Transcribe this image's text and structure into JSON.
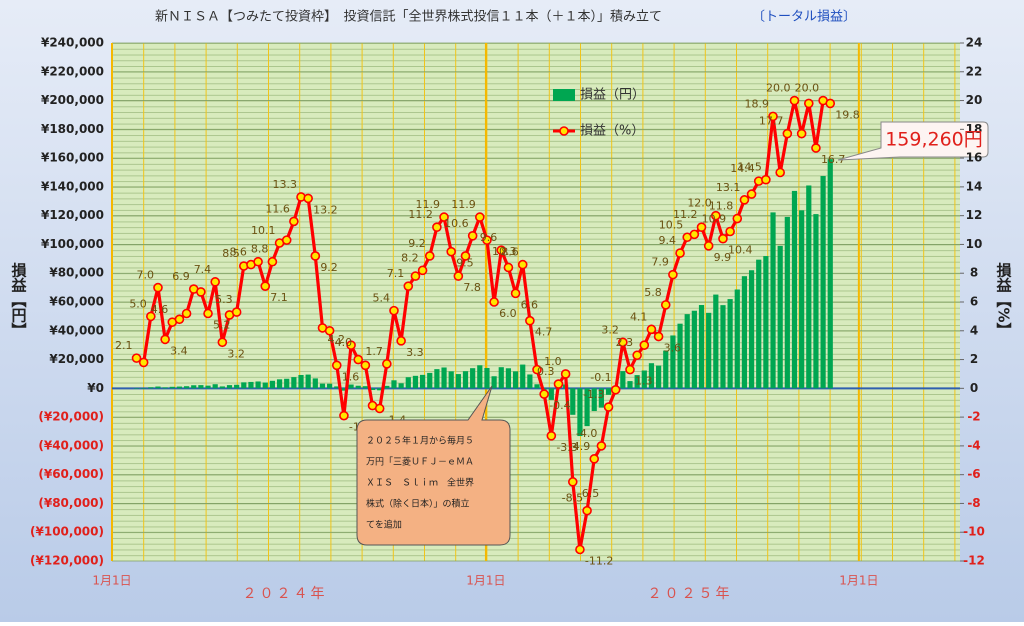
{
  "chart_data": {
    "type": "bar-line",
    "title": "新ＮＩＳＡ【つみたて投資枠】　投資信託「全世界株式投信１１本（＋１本）」積み立て",
    "title_suffix": "〔トータル損益〕",
    "y_label": "損益【円】",
    "y2_label": "損益【%】",
    "x_groups": [
      "２０２４年",
      "２０２５年"
    ],
    "annotation": [
      "２０２５年１月から毎月５",
      "万円「三菱ＵＦＪ－ｅＭＡ",
      "ＸＩＳ　Ｓｌｉｍ　全世界",
      "株式（除く日本）」の積立",
      "てを追加"
    ],
    "xlim": [
      0,
      830
    ],
    "xticks": [
      {
        "value": 0,
        "label": "1月1日"
      },
      {
        "value": 366,
        "label": "1月1日"
      },
      {
        "value": 731,
        "label": "1月1日"
      }
    ],
    "ylim": [
      -120000,
      240000
    ],
    "yticks": [
      {
        "value": 240000,
        "label": "¥240,000"
      },
      {
        "value": 220000,
        "label": "¥220,000"
      },
      {
        "value": 200000,
        "label": "¥200,000"
      },
      {
        "value": 180000,
        "label": "¥180,000"
      },
      {
        "value": 160000,
        "label": "¥160,000"
      },
      {
        "value": 140000,
        "label": "¥140,000"
      },
      {
        "value": 120000,
        "label": "¥120,000"
      },
      {
        "value": 100000,
        "label": "¥100,000"
      },
      {
        "value": 80000,
        "label": "¥80,000"
      },
      {
        "value": 60000,
        "label": "¥60,000"
      },
      {
        "value": 40000,
        "label": "¥40,000"
      },
      {
        "value": 20000,
        "label": "¥20,000"
      },
      {
        "value": 0,
        "label": "¥0"
      },
      {
        "value": -20000,
        "label": "(¥20,000)"
      },
      {
        "value": -40000,
        "label": "(¥40,000)"
      },
      {
        "value": -60000,
        "label": "(¥60,000)"
      },
      {
        "value": -80000,
        "label": "(¥80,000)"
      },
      {
        "value": -100000,
        "label": "(¥100,000)"
      },
      {
        "value": -120000,
        "label": "(¥120,000)"
      }
    ],
    "y2lim": [
      -12,
      24
    ],
    "y2ticks": [
      24,
      22,
      20,
      18,
      16,
      14,
      12,
      10,
      8,
      6,
      4,
      2,
      0,
      -2,
      -4,
      -6,
      -8,
      -10,
      -12
    ],
    "x": [
      24,
      31,
      38,
      45,
      52,
      59,
      66,
      73,
      80,
      87,
      94,
      101,
      108,
      115,
      122,
      129,
      136,
      143,
      150,
      157,
      164,
      171,
      178,
      185,
      192,
      199,
      206,
      213,
      220,
      227,
      234,
      241,
      248,
      255,
      262,
      269,
      276,
      283,
      290,
      297,
      304,
      311,
      318,
      325,
      332,
      339,
      346,
      353,
      360,
      367,
      374,
      381,
      388,
      395,
      402,
      409,
      416,
      423,
      430,
      437,
      444,
      451,
      458,
      465,
      472,
      479,
      486,
      493,
      500,
      507,
      514,
      521,
      528,
      535,
      542,
      549,
      556,
      563,
      570,
      577,
      584,
      591,
      598,
      605,
      612,
      619,
      626,
      633,
      640,
      647,
      654,
      661,
      668,
      675,
      682,
      689,
      696,
      703
    ],
    "series": [
      {
        "name": "損益（円）",
        "color": "#00a651",
        "values": [
          210,
          230,
          760,
          1250,
          690,
          1060,
          1230,
          1470,
          2130,
          2240,
          1870,
          2860,
          1320,
          2230,
          2460,
          4170,
          4440,
          4770,
          4030,
          5230,
          6260,
          6650,
          7800,
          9280,
          9560,
          6900,
          3260,
          3210,
          1320,
          -1620,
          2640,
          1810,
          1490,
          -1150,
          -1380,
          1720,
          5590,
          3500,
          7720,
          8690,
          9350,
          10730,
          13350,
          14490,
          11820,
          9910,
          11920,
          14010,
          16040,
          14150,
          8400,
          14690,
          13940,
          11810,
          16510,
          9640,
          2830,
          -920,
          -8050,
          770,
          2700,
          -18400,
          -33150,
          -26270,
          -15780,
          -13400,
          -4520,
          -360,
          11970,
          5030,
          9200,
          12390,
          17470,
          15800,
          26220,
          36740,
          44930,
          51560,
          53930,
          57900,
          52470,
          65160,
          57820,
          62020,
          68680,
          77950,
          82080,
          89420,
          91930,
          122280,
          99000,
          119120,
          137200,
          123720,
          140980,
          121080,
          147600,
          159260
        ],
        "value_labels": [
          null,
          null,
          null,
          null,
          null,
          null,
          null,
          null,
          null,
          null,
          null,
          null,
          null,
          null,
          null,
          null,
          null,
          null,
          null,
          null,
          null,
          null,
          null,
          null,
          null,
          null,
          null,
          null,
          null,
          null,
          null,
          null,
          null,
          null,
          null,
          null,
          null,
          null,
          null,
          null,
          null,
          null,
          null,
          null,
          null,
          null,
          null,
          null,
          null,
          null,
          null,
          null,
          null,
          null,
          null,
          null,
          null,
          null,
          null,
          null,
          null,
          null,
          null,
          null,
          null,
          null,
          null,
          null,
          null,
          null,
          null,
          null,
          null,
          null,
          null,
          null,
          null,
          null,
          null,
          null,
          null,
          null,
          null,
          null,
          null,
          null,
          null,
          null,
          null,
          null,
          null,
          null,
          null,
          null,
          null,
          null,
          null,
          "159,260円"
        ]
      },
      {
        "name": "損益（%）",
        "color": "#ff0000",
        "axis": "y2",
        "values": [
          2.1,
          1.8,
          5.0,
          7.0,
          3.4,
          4.6,
          4.8,
          5.2,
          6.9,
          6.7,
          5.2,
          7.4,
          3.2,
          5.1,
          5.3,
          8.5,
          8.6,
          8.8,
          7.1,
          8.8,
          10.1,
          10.3,
          11.6,
          13.3,
          13.2,
          9.2,
          4.2,
          4.0,
          1.6,
          -1.9,
          3.0,
          2.0,
          1.6,
          -1.2,
          -1.4,
          1.7,
          5.4,
          3.3,
          7.1,
          7.8,
          8.2,
          9.2,
          11.2,
          11.9,
          9.5,
          7.8,
          9.2,
          10.6,
          11.9,
          10.3,
          6.0,
          9.6,
          8.4,
          6.6,
          8.6,
          4.7,
          1.3,
          -0.4,
          -3.3,
          0.3,
          1.0,
          -6.5,
          -11.2,
          -8.5,
          -4.9,
          -4.0,
          -1.3,
          -0.1,
          3.2,
          1.3,
          2.3,
          3.0,
          4.1,
          3.6,
          5.8,
          7.9,
          9.4,
          10.5,
          10.7,
          11.2,
          9.9,
          12.0,
          10.4,
          10.9,
          11.8,
          13.1,
          13.5,
          14.4,
          14.5,
          18.9,
          15.0,
          17.7,
          20.0,
          17.7,
          19.8,
          16.7,
          20.0,
          19.8
        ],
        "value_labels": [
          "2.1",
          null,
          "5.0",
          "7.0",
          "3.4",
          "4.6",
          null,
          null,
          "6.9",
          null,
          "5.2",
          "7.4",
          "3.2",
          null,
          "5.3",
          "8.5",
          "8.6",
          null,
          "7.1",
          "8.8",
          "10.1",
          null,
          "11.6",
          "13.3",
          "13.2",
          "9.2",
          "4.2",
          "4.0",
          "1.6",
          "-1.9",
          null,
          null,
          null,
          null,
          "-1.4",
          "1.7",
          "5.4",
          "3.3",
          "7.1",
          null,
          "8.2",
          "9.2",
          "11.2",
          "11.9",
          "9.5",
          "7.8",
          null,
          "10.6",
          "11.9",
          "10.3",
          "6.0",
          "9.6",
          null,
          "6.6",
          "8.6",
          "4.7",
          null,
          "-0.4",
          "-3.3",
          "0.3",
          "1.0",
          "-6.5",
          "-11.2",
          "-8.5",
          "-4.9",
          "-4.0",
          "-1.3",
          "-0.1",
          "3.2",
          "1.3",
          "2.3",
          null,
          "4.1",
          "3.6",
          "5.8",
          "7.9",
          "9.4",
          "10.5",
          null,
          "11.2",
          "9.9",
          "12.0",
          "10.4",
          "10.9",
          "11.8",
          "13.1",
          null,
          "14.4",
          "14.5",
          "18.9",
          null,
          "17.7",
          "20.0",
          null,
          null,
          "16.7",
          "20.0",
          "19.8"
        ]
      }
    ],
    "legend": "upper-center",
    "grid": true
  }
}
